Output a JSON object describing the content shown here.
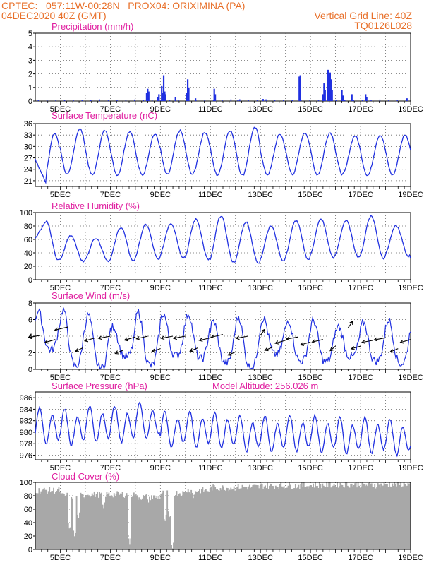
{
  "header": {
    "line1": "CPTEC:   057:11W-00:28N   PROX04: ORIXIMINA (PA)",
    "line2_left": "04DEC2020 40Z (GMT)",
    "line2_right": "Vertical Grid Line: 40Z",
    "line3_right": "TQ0126L028",
    "model_altitude": "Model Altitude: 256.026 m"
  },
  "colors": {
    "header": "#e8702a",
    "panel_title": "#e020a0",
    "series": "#2030e0",
    "cloud": "#a8a8a8",
    "wind_arrow": "#000000"
  },
  "x_tick_labels": [
    "5DEC",
    "7DEC",
    "9DEC",
    "11DEC",
    "13DEC",
    "15DEC",
    "17DEC",
    "19DEC"
  ],
  "chart_data": [
    {
      "id": "precip",
      "type": "bar",
      "title": "Precipitation (mm/h)",
      "ylim": [
        0,
        5
      ],
      "yticks": [
        0,
        1,
        2,
        3,
        4,
        5
      ],
      "grid": true,
      "x_range_days": [
        4.0,
        19.0
      ],
      "events": [
        {
          "day": 8.45,
          "values": [
            0.6,
            0.9,
            0.7
          ]
        },
        {
          "day": 8.9,
          "values": [
            0.3,
            0.5
          ]
        },
        {
          "day": 9.05,
          "values": [
            1.1,
            0.6,
            1.9,
            0.7,
            0.5
          ]
        },
        {
          "day": 9.6,
          "values": [
            0.3
          ]
        },
        {
          "day": 10.05,
          "values": [
            0.6,
            1.6,
            1.0
          ]
        },
        {
          "day": 10.4,
          "values": [
            0.2
          ]
        },
        {
          "day": 11.15,
          "values": [
            0.9,
            0.5
          ]
        },
        {
          "day": 12.1,
          "values": [
            0.1
          ]
        },
        {
          "day": 13.1,
          "values": [
            0.15
          ]
        },
        {
          "day": 14.55,
          "values": [
            1.8,
            1.9
          ]
        },
        {
          "day": 15.5,
          "values": [
            0.5,
            1.3,
            0.8
          ]
        },
        {
          "day": 15.7,
          "values": [
            2.3,
            1.5,
            2.1,
            1.6,
            0.8
          ]
        },
        {
          "day": 16.25,
          "values": [
            0.8,
            0.4
          ]
        },
        {
          "day": 16.65,
          "values": [
            0.5
          ]
        },
        {
          "day": 17.2,
          "values": [
            0.5,
            0.3
          ]
        },
        {
          "day": 18.85,
          "values": [
            0.2
          ]
        }
      ]
    },
    {
      "id": "temp",
      "type": "line",
      "title": "Surface Temperature (nC)",
      "ylim": [
        19.5,
        36
      ],
      "yticks": [
        21,
        24,
        27,
        30,
        33,
        36
      ],
      "grid": true,
      "x_range_days": [
        4.0,
        19.0
      ],
      "daily_min": [
        20.0,
        22.6,
        22.5,
        22.5,
        22.5,
        22.6,
        22.7,
        22.5,
        22.4,
        22.6,
        22.7,
        22.6,
        22.7,
        22.4,
        22.5,
        23.0
      ],
      "daily_max": [
        33.4,
        34.6,
        34.2,
        34.0,
        33.2,
        34.1,
        33.7,
        34.2,
        34.9,
        33.2,
        33.6,
        33.6,
        32.8,
        33.0,
        33.0,
        33.4
      ],
      "min_hour_frac": 0.42,
      "max_hour_frac": 0.78
    },
    {
      "id": "rh",
      "type": "line",
      "title": "Relative Humidity (%)",
      "ylim": [
        0,
        100
      ],
      "yticks": [
        0,
        20,
        40,
        60,
        80,
        100
      ],
      "grid": true,
      "x_range_days": [
        4.0,
        19.0
      ],
      "daily_max": [
        88,
        66,
        62,
        78,
        82,
        84,
        90,
        95,
        86,
        80,
        88,
        90,
        88,
        95,
        80,
        38
      ],
      "daily_min": [
        29,
        27,
        28,
        28,
        30,
        33,
        30,
        26,
        24,
        28,
        30,
        33,
        34,
        32,
        35,
        32
      ],
      "min_hour_frac": 0.78,
      "max_hour_frac": 0.42
    },
    {
      "id": "wind",
      "type": "line",
      "title": "Surface Wind (m/s)",
      "ylim": [
        0,
        8
      ],
      "yticks": [
        0,
        2,
        4,
        6,
        8
      ],
      "grid": true,
      "x_range_days": [
        4.0,
        19.0
      ],
      "daily_max": [
        7.0,
        7.2,
        6.6,
        5.2,
        6.9,
        6.7,
        6.7,
        5.8,
        6.4,
        6.2,
        5.9,
        5.9,
        5.2,
        5.7,
        6.0,
        6.1
      ],
      "daily_min": [
        2.4,
        0.5,
        0.2,
        1.5,
        0.5,
        1.7,
        1.3,
        0.8,
        0.3,
        1.8,
        1.0,
        0.9,
        1.5,
        1.0,
        0.7,
        0.6
      ],
      "max_hour_frac": 0.12,
      "min_hour_frac": 0.6,
      "arrow_days": [
        4.2,
        4.8,
        5.3,
        5.9,
        6.4,
        7.0,
        7.5,
        8.0,
        8.5,
        9.0,
        9.5,
        10.0,
        10.5,
        11.0,
        11.5,
        12.0,
        12.5,
        13.0,
        13.5,
        14.0,
        14.5,
        15.0,
        15.5,
        16.0,
        16.5,
        17.0,
        17.5,
        18.0,
        18.5,
        19.0
      ],
      "arrow_speed": [
        4.1,
        3.6,
        5.1,
        2.6,
        3.8,
        4.0,
        2.3,
        3.9,
        4.0,
        2.5,
        4.0,
        4.0,
        2.6,
        3.8,
        4.2,
        2.1,
        4.0,
        4.1,
        2.7,
        3.5,
        3.9,
        3.3,
        3.6,
        2.8,
        5.0,
        2.8,
        3.5,
        3.8,
        2.5,
        3.6
      ],
      "arrow_from_deg": [
        70,
        60,
        65,
        45,
        60,
        70,
        50,
        60,
        65,
        55,
        70,
        70,
        50,
        65,
        65,
        50,
        70,
        200,
        50,
        60,
        70,
        60,
        65,
        30,
        200,
        60,
        70,
        70,
        50,
        60
      ]
    },
    {
      "id": "pres",
      "type": "line",
      "title": "Surface Pressure (hPa)",
      "ylim": [
        975.2,
        987
      ],
      "yticks": [
        976,
        978,
        980,
        982,
        984,
        986
      ],
      "grid": true,
      "x_range_days": [
        4.0,
        19.0
      ],
      "semidiurnal_amplitude": 2.6,
      "daily_mean": [
        981.0,
        980.8,
        981.3,
        981.3,
        981.9,
        980.4,
        980.4,
        980.2,
        979.7,
        979.6,
        979.7,
        979.5,
        979.3,
        979.3,
        979.0,
        978.6
      ]
    },
    {
      "id": "cloud",
      "type": "bar",
      "title": "Cloud Cover (%)",
      "ylim": [
        0,
        100
      ],
      "yticks": [
        0,
        20,
        40,
        60,
        80,
        100
      ],
      "grid": true,
      "x_range_days": [
        4.0,
        19.0
      ],
      "daily_level": [
        88,
        80,
        82,
        82,
        78,
        84,
        88,
        92,
        93,
        95,
        95,
        96,
        97,
        96,
        97
      ],
      "dips": [
        {
          "day": 5.35,
          "value": 28
        },
        {
          "day": 5.55,
          "value": 18
        },
        {
          "day": 5.7,
          "value": 45
        },
        {
          "day": 6.7,
          "value": 60
        },
        {
          "day": 7.75,
          "value": 8
        },
        {
          "day": 8.5,
          "value": 70
        },
        {
          "day": 9.15,
          "value": 40
        },
        {
          "day": 9.35,
          "value": 45
        },
        {
          "day": 9.45,
          "value": 0
        },
        {
          "day": 10.3,
          "value": 75
        },
        {
          "day": 10.9,
          "value": 90
        }
      ]
    }
  ]
}
